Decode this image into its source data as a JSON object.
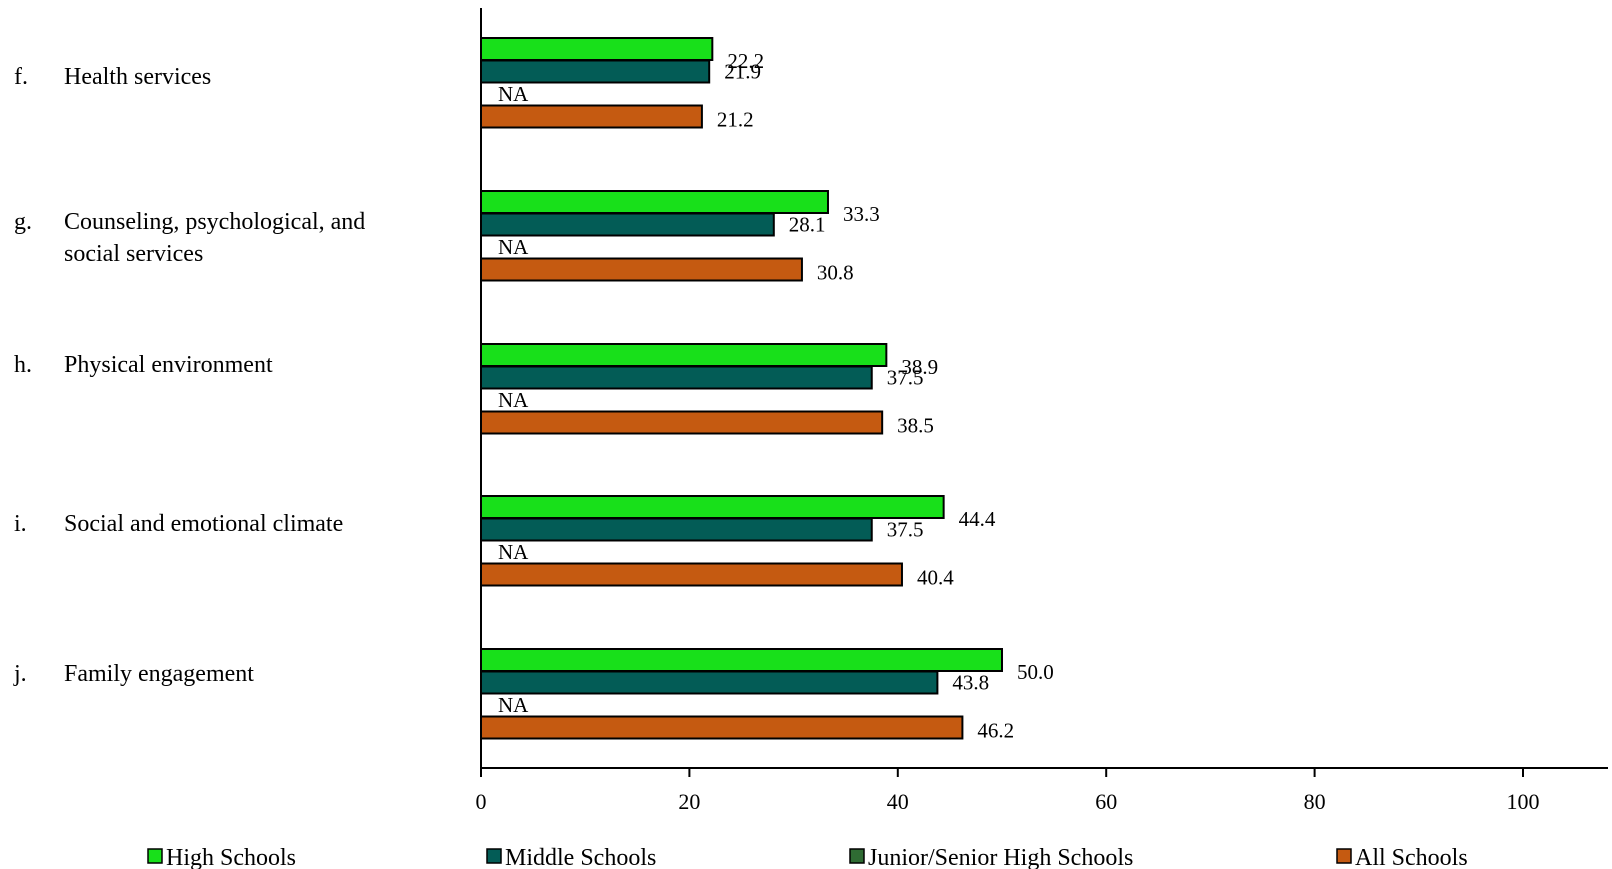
{
  "chart_data": {
    "type": "bar",
    "orientation": "horizontal",
    "categories": [
      {
        "letter": "f.",
        "lines": [
          "Health services"
        ]
      },
      {
        "letter": "g.",
        "lines": [
          "Counseling, psychological, and",
          "social services"
        ]
      },
      {
        "letter": "h.",
        "lines": [
          "Physical environment"
        ]
      },
      {
        "letter": "i.",
        "lines": [
          "Social and emotional climate"
        ]
      },
      {
        "letter": "j.",
        "lines": [
          "Family engagement"
        ]
      }
    ],
    "series": [
      {
        "name": "High Schools",
        "color": "#18e01a",
        "values": [
          22.2,
          33.3,
          38.9,
          44.4,
          50.0
        ],
        "labels": [
          "22.2",
          "33.3",
          "38.9",
          "44.4",
          "50.0"
        ]
      },
      {
        "name": "Middle Schools",
        "color": "#035c56",
        "values": [
          21.9,
          28.1,
          37.5,
          37.5,
          43.8
        ],
        "labels": [
          "21.9",
          "28.1",
          "37.5",
          "37.5",
          "43.8"
        ]
      },
      {
        "name": "Junior/Senior High Schools",
        "color": "#2f6b33",
        "values": [
          null,
          null,
          null,
          null,
          null
        ],
        "labels": [
          "NA",
          "NA",
          "NA",
          "NA",
          "NA"
        ]
      },
      {
        "name": "All Schools",
        "color": "#c55a11",
        "values": [
          21.2,
          30.8,
          38.5,
          40.4,
          46.2
        ],
        "labels": [
          "21.2",
          "30.8",
          "38.5",
          "40.4",
          "46.2"
        ]
      }
    ],
    "xlim": [
      0,
      100
    ],
    "xticks": [
      "0",
      "20",
      "40",
      "60",
      "80",
      "100"
    ],
    "grid": false,
    "legend_position": "bottom"
  }
}
